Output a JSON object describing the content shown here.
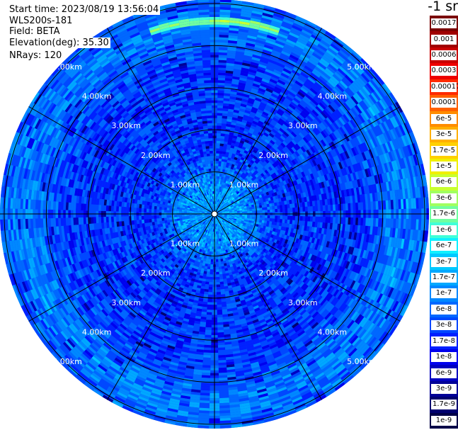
{
  "header": {
    "start_time": "Start time: 2023/08/19 13:56:04",
    "instrument": "WLS200s-181",
    "field": "Field: BETA",
    "elevation": "Elevation(deg): 35.30",
    "nrays": "NRays: 120"
  },
  "colorbar": {
    "units_title": "-1 sr",
    "labels": [
      "0.0017",
      "0.001",
      "0.0006",
      "0.0003",
      "0.00017",
      "0.0001",
      "6e-5",
      "3e-5",
      "1.7e-5",
      "1e-5",
      "6e-6",
      "3e-6",
      "1.7e-6",
      "1e-6",
      "6e-7",
      "3e-7",
      "1.7e-7",
      "1e-7",
      "6e-8",
      "3e-8",
      "1.7e-8",
      "1e-8",
      "6e-9",
      "3e-9",
      "1.7e-9",
      "1e-9"
    ],
    "colors": [
      "#7a0000",
      "#a00000",
      "#c80000",
      "#ee0000",
      "#ff2a00",
      "#ff6000",
      "#ff8c00",
      "#ffb000",
      "#ffd000",
      "#f0f000",
      "#c8ff30",
      "#a0ff60",
      "#70ffa0",
      "#40ffd8",
      "#10f0ff",
      "#00c8ff",
      "#00a8ff",
      "#0088ff",
      "#0068ff",
      "#0048ff",
      "#0020ff",
      "#0000ee",
      "#0000c0",
      "#000098",
      "#000070",
      "#000048"
    ]
  },
  "chart_data": {
    "type": "heatmap",
    "projection": "polar (PPI scan)",
    "field": "BETA",
    "elevation_deg": 35.3,
    "n_rays": 120,
    "azimuth_gridlines_deg": [
      0,
      30,
      60,
      90,
      120,
      150,
      180,
      210,
      240,
      270,
      300,
      330
    ],
    "range_rings": [
      "1.00km",
      "2.00km",
      "3.00km",
      "4.00km",
      "5.00km"
    ],
    "range_ring_km": [
      1,
      2,
      3,
      4,
      5
    ],
    "max_range_km": 5.1,
    "colorscale": "log10 backscatter, 1e-9 to 0.0017",
    "typical_value_by_range": [
      {
        "range_km": 0.6,
        "value": "1.7e-7"
      },
      {
        "range_km": 1.5,
        "value": "3e-8"
      },
      {
        "range_km": 2.5,
        "value": "3e-8"
      },
      {
        "range_km": 3.5,
        "value": "3e-8"
      },
      {
        "range_km": 4.5,
        "value": "1e-7"
      },
      {
        "range_km": 5.0,
        "value": "6e-8"
      }
    ],
    "features": [
      {
        "description": "high backscatter arc",
        "azimuth_deg_range": [
          345,
          15
        ],
        "range_km": 4.6,
        "value": "3e-6"
      },
      {
        "description": "isolated enhanced returns",
        "azimuth_deg": 290,
        "range_km": 4.3,
        "value": "1.7e-7"
      }
    ]
  }
}
